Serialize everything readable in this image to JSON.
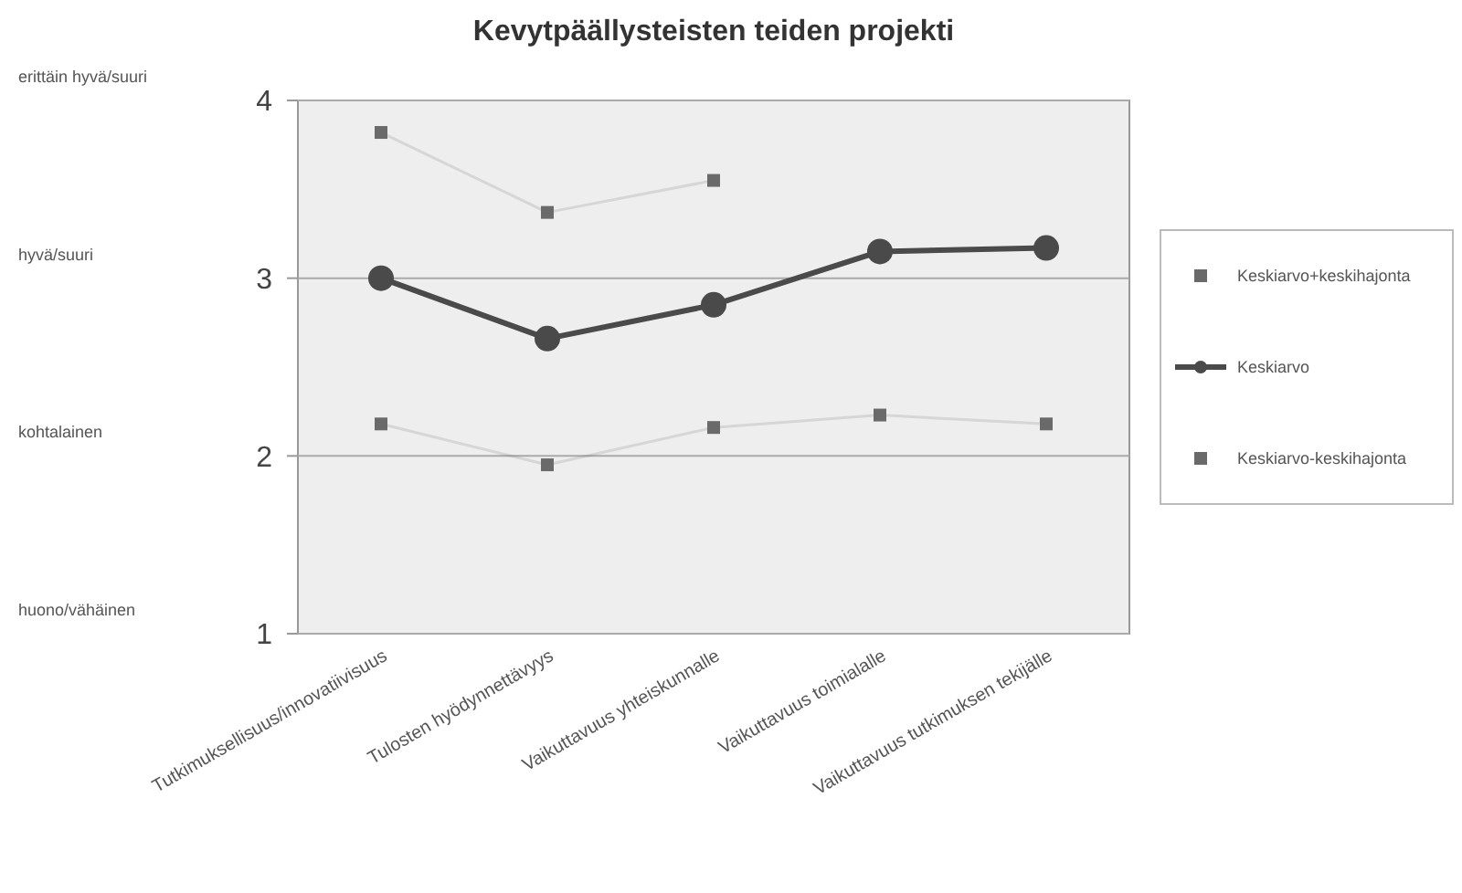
{
  "chart_data": {
    "type": "line",
    "title": "Kevytpäällysteisten teiden projekti",
    "categories": [
      "Tutkimuksellisuus/innovatiivisuus",
      "Tulosten hyödynnettävyys",
      "Vaikuttavuus yhteiskunnalle",
      "Vaikuttavuus toimialalle",
      "Vaikuttavuus tutkimuksen tekijälle"
    ],
    "series": [
      {
        "name": "Keskiarvo+keskihajonta",
        "color": "#6a6a6a",
        "marker": "square",
        "values": [
          3.82,
          3.37,
          3.55,
          null,
          null
        ]
      },
      {
        "name": "Keskiarvo",
        "color": "#4a4a4a",
        "marker": "circle",
        "values": [
          3.0,
          2.66,
          2.85,
          3.15,
          3.17
        ]
      },
      {
        "name": "Keskiarvo-keskihajonta",
        "color": "#6a6a6a",
        "marker": "square",
        "values": [
          2.18,
          1.95,
          2.16,
          2.23,
          2.18
        ]
      }
    ],
    "ylim": [
      1,
      4
    ],
    "yticks": [
      1,
      2,
      3,
      4
    ],
    "grid": "y",
    "legend": "right",
    "annotations": [
      "erittäin hyvä/suuri",
      "hyvä/suuri",
      "kohtalainen",
      "huono/vähäinen"
    ]
  }
}
